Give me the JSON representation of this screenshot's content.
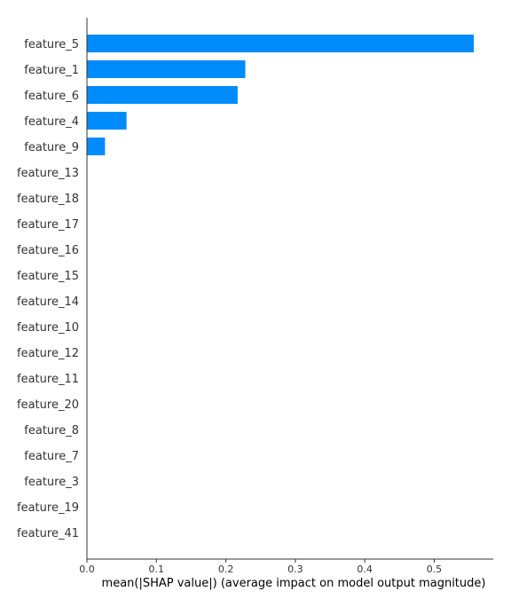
{
  "chart_data": {
    "type": "bar",
    "orientation": "horizontal",
    "categories": [
      "feature_5",
      "feature_1",
      "feature_6",
      "feature_4",
      "feature_9",
      "feature_13",
      "feature_18",
      "feature_17",
      "feature_16",
      "feature_15",
      "feature_14",
      "feature_10",
      "feature_12",
      "feature_11",
      "feature_20",
      "feature_8",
      "feature_7",
      "feature_3",
      "feature_19",
      "feature_41"
    ],
    "values": [
      0.557,
      0.228,
      0.217,
      0.057,
      0.026,
      0,
      0,
      0,
      0,
      0,
      0,
      0,
      0,
      0,
      0,
      0,
      0,
      0,
      0,
      0
    ],
    "xlabel": "mean(|SHAP value|) (average impact on model output magnitude)",
    "ylabel": "",
    "xlim": [
      0,
      0.585
    ],
    "xticks": [
      0.0,
      0.1,
      0.2,
      0.3,
      0.4,
      0.5
    ],
    "xtick_labels": [
      "0.0",
      "0.1",
      "0.2",
      "0.3",
      "0.4",
      "0.5"
    ],
    "bar_color": "#008bfb",
    "grid": false
  }
}
